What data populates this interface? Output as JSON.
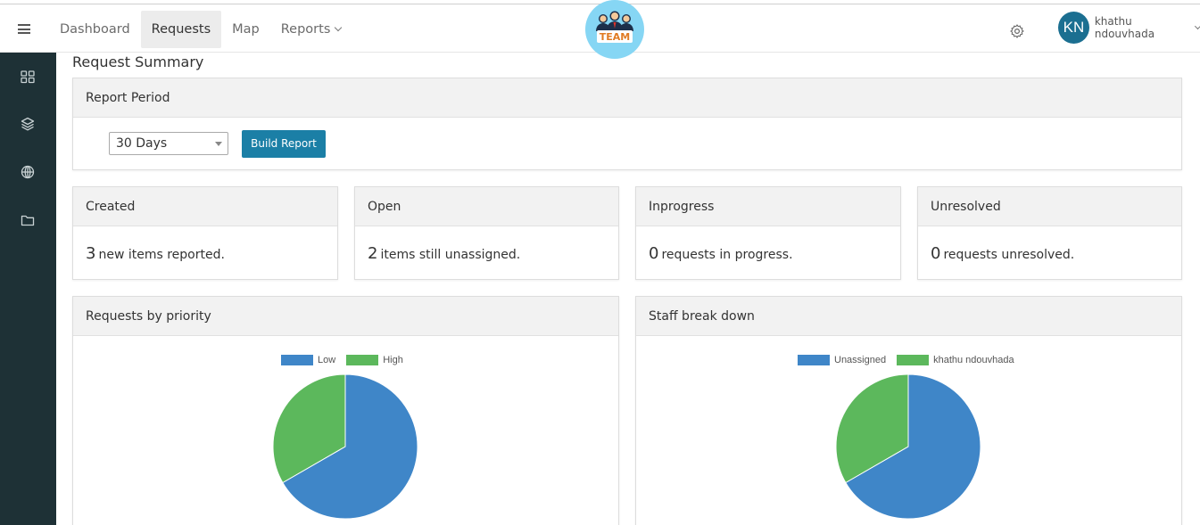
{
  "nav": {
    "items": [
      {
        "label": "Dashboard",
        "active": false
      },
      {
        "label": "Requests",
        "active": true
      },
      {
        "label": "Map",
        "active": false
      },
      {
        "label": "Reports",
        "active": false,
        "dropdown": true
      }
    ]
  },
  "logo": {
    "text": "TEAM"
  },
  "user": {
    "initials": "KN",
    "name": "khathu ndouvhada"
  },
  "sidebar": {
    "icons": [
      "grid-icon",
      "layers-icon",
      "globe-icon",
      "folder-icon"
    ]
  },
  "page": {
    "title": "Request Summary"
  },
  "report_period": {
    "title": "Report Period",
    "selected": "30 Days",
    "button": "Build Report"
  },
  "stats": [
    {
      "title": "Created",
      "value": "3",
      "text": "new items reported."
    },
    {
      "title": "Open",
      "value": "2",
      "text": "items still unassigned."
    },
    {
      "title": "Inprogress",
      "value": "0",
      "text": "requests in progress."
    },
    {
      "title": "Unresolved",
      "value": "0",
      "text": "requests unresolved."
    }
  ],
  "colors": {
    "accent": "#1b7fa6",
    "sidebar": "#1e3136",
    "pie_blue": "#3f86c8",
    "pie_green": "#5cb85c"
  },
  "chart_data": [
    {
      "type": "pie",
      "title": "Requests by priority",
      "labels": [
        "Low",
        "High"
      ],
      "values": [
        2,
        1
      ],
      "colors": [
        "#3f86c8",
        "#5cb85c"
      ],
      "legend": "top"
    },
    {
      "type": "pie",
      "title": "Staff break down",
      "labels": [
        "Unassigned",
        "khathu ndouvhada"
      ],
      "values": [
        2,
        1
      ],
      "colors": [
        "#3f86c8",
        "#5cb85c"
      ],
      "legend": "top"
    }
  ]
}
